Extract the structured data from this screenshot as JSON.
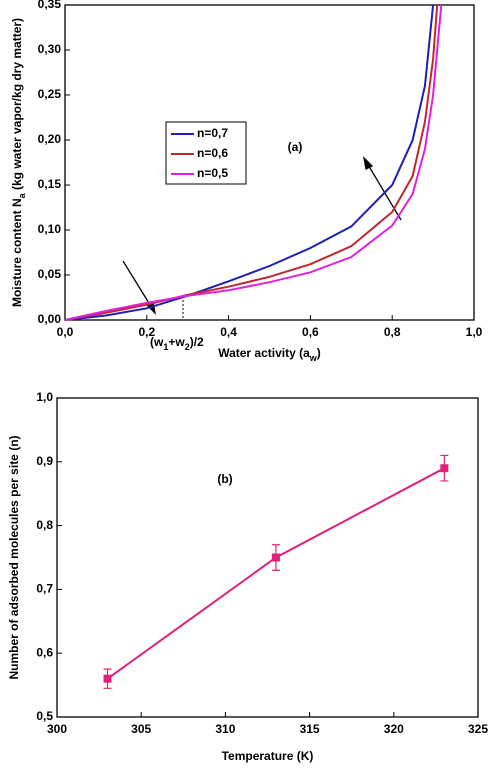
{
  "chart_data": [
    {
      "type": "line",
      "x": [
        0,
        0.1,
        0.2,
        0.3,
        0.4,
        0.5,
        0.6,
        0.7,
        0.8,
        0.85,
        0.88,
        0.9,
        0.91,
        0.92
      ],
      "series": [
        {
          "name": "n=0,7",
          "color": "#1f1fb4",
          "values": [
            0,
            0.005,
            0.013,
            0.027,
            0.043,
            0.06,
            0.08,
            0.104,
            0.15,
            0.2,
            0.26,
            0.35,
            null,
            null
          ]
        },
        {
          "name": "n=0,6",
          "color": "#c0282d",
          "values": [
            0,
            0.008,
            0.017,
            0.028,
            0.037,
            0.048,
            0.062,
            0.082,
            0.12,
            0.16,
            0.22,
            0.29,
            0.35,
            null
          ]
        },
        {
          "name": "n=0,5",
          "color": "#e020e0",
          "values": [
            0,
            0.01,
            0.019,
            0.027,
            0.033,
            0.042,
            0.053,
            0.07,
            0.105,
            0.14,
            0.19,
            0.25,
            0.3,
            0.35
          ]
        }
      ],
      "xlim": [
        0,
        1
      ],
      "ylim": [
        0,
        0.35
      ],
      "xticks": [
        {
          "value": 0,
          "label": "0,0"
        },
        {
          "value": 0.2,
          "label": "0,2"
        },
        {
          "value": 0.4,
          "label": "0,4"
        },
        {
          "value": 0.6,
          "label": "0,6"
        },
        {
          "value": 0.8,
          "label": "0,8"
        },
        {
          "value": 1,
          "label": "1,0"
        }
      ],
      "yticks": [
        {
          "value": 0,
          "label": "0,00"
        },
        {
          "value": 0.05,
          "label": "0,05"
        },
        {
          "value": 0.1,
          "label": "0,10"
        },
        {
          "value": 0.15,
          "label": "0,15"
        },
        {
          "value": 0.2,
          "label": "0,20"
        },
        {
          "value": 0.25,
          "label": "0,25"
        },
        {
          "value": 0.3,
          "label": "0,30"
        },
        {
          "value": 0.35,
          "label": "0,35"
        }
      ],
      "x_label": [
        "Water activity (a",
        "w",
        ")"
      ],
      "y_label": [
        "Moisture content N",
        "a",
        " (kg water vapor/kg dry matter)"
      ],
      "annotations": [
        "(a)"
      ],
      "midpoint_label": [
        "(w",
        "1",
        "+w",
        "2",
        ")/2"
      ],
      "legend": "upper-center"
    },
    {
      "type": "errorline",
      "x": [
        303,
        313,
        323
      ],
      "series": [
        {
          "color": "#e0207a",
          "values": [
            0.56,
            0.75,
            0.89
          ],
          "errors": [
            0.015,
            0.02,
            0.02
          ]
        }
      ],
      "xlim": [
        300,
        325
      ],
      "ylim": [
        0.5,
        1.0
      ],
      "xticks": [
        300,
        305,
        310,
        315,
        320,
        325
      ],
      "yticks": [
        {
          "value": 0.5,
          "label": "0,5"
        },
        {
          "value": 0.6,
          "label": "0,6"
        },
        {
          "value": 0.7,
          "label": "0,7"
        },
        {
          "value": 0.8,
          "label": "0,8"
        },
        {
          "value": 0.9,
          "label": "0,9"
        },
        {
          "value": 1.0,
          "label": "1,0"
        }
      ],
      "x_label": "Temperature (K)",
      "y_label": "Number of adsorbed molecules per site (n)",
      "annotations": [
        "(b)"
      ]
    }
  ]
}
